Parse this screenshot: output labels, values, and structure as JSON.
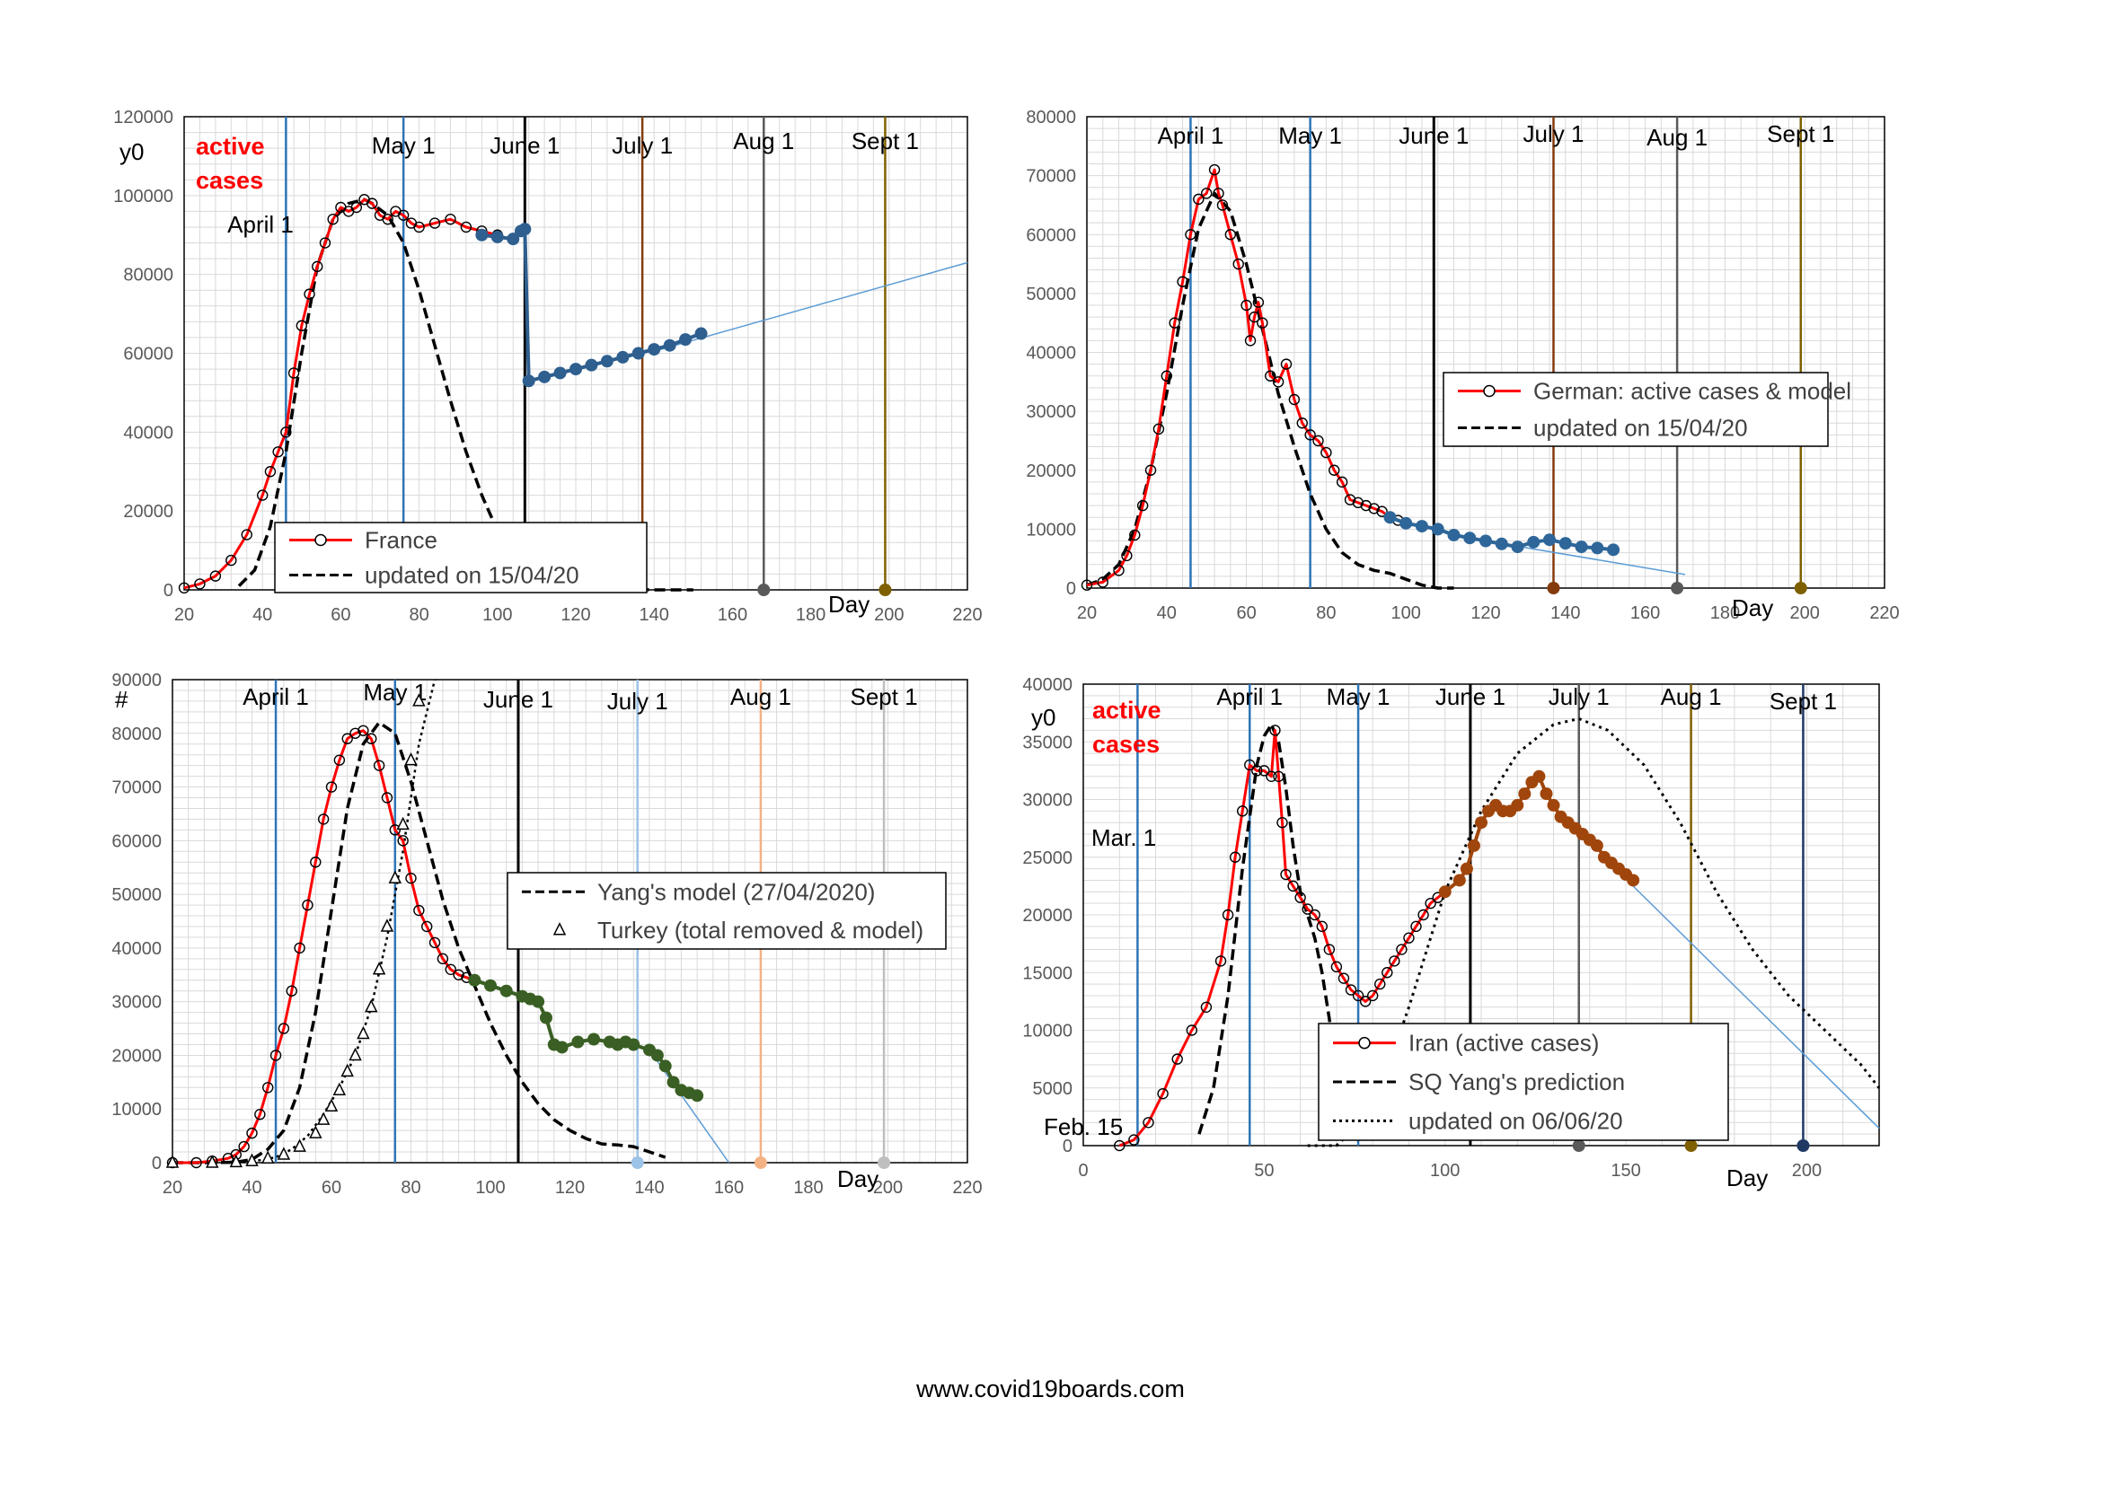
{
  "footer": "www.covid19boards.com",
  "colors": {
    "observed_red": "#ff0000",
    "france_blue": "#2e5f8f",
    "germany_blue": "#2e6699",
    "turkey_green": "#3a5f24",
    "iran_brown": "#a0460c",
    "trend_blue": "#5b9bd5",
    "gridline": "#d9d9d9"
  },
  "chart_data": [
    {
      "id": "france",
      "type": "line",
      "ylabel": "y0",
      "red_label": [
        "active",
        "cases"
      ],
      "xlabel": "Day",
      "xlim": [
        20,
        220
      ],
      "ylim": [
        0,
        120000
      ],
      "xticks": [
        20,
        40,
        60,
        80,
        100,
        120,
        140,
        160,
        180,
        200,
        220
      ],
      "yticks": [
        0,
        20000,
        40000,
        60000,
        80000,
        100000,
        120000
      ],
      "markers": [
        {
          "label": "April 1",
          "x": 46,
          "color": "#2e75b6",
          "dot": false
        },
        {
          "label": "May 1",
          "x": 76,
          "color": "#2e75b6",
          "dot": false
        },
        {
          "label": "June 1",
          "x": 107,
          "color": "#000000",
          "dot": false
        },
        {
          "label": "July 1",
          "x": 137,
          "color": "#843c0c",
          "dot": false
        },
        {
          "label": "Aug 1",
          "x": 168,
          "color": "#595959",
          "dot": true
        },
        {
          "label": "Sept 1",
          "x": 199,
          "color": "#7f6000",
          "dot": true
        }
      ],
      "legend": [
        "France",
        "updated on 15/04/20"
      ],
      "observed": {
        "x": [
          20,
          24,
          28,
          32,
          36,
          40,
          42,
          44,
          46,
          48,
          50,
          52,
          54,
          56,
          58,
          60,
          62,
          64,
          66,
          68,
          70,
          72,
          74,
          76,
          78,
          80,
          84,
          88,
          92,
          96,
          100
        ],
        "y": [
          500,
          1500,
          3500,
          7500,
          14000,
          24000,
          30000,
          35000,
          40000,
          55000,
          67000,
          75000,
          82000,
          88000,
          94000,
          97000,
          96000,
          97000,
          99000,
          98000,
          95000,
          94000,
          96000,
          95000,
          93000,
          92000,
          93000,
          94000,
          92000,
          91000,
          90000
        ]
      },
      "model": {
        "x": [
          34,
          38,
          42,
          46,
          50,
          54,
          58,
          62,
          66,
          68,
          72,
          76,
          80,
          84,
          88,
          92,
          96,
          100,
          104,
          108,
          112,
          140,
          150
        ],
        "y": [
          1000,
          5000,
          16000,
          35000,
          60000,
          82000,
          94000,
          98000,
          99000,
          98000,
          95000,
          88000,
          76000,
          62000,
          48000,
          35000,
          24000,
          15000,
          8000,
          3000,
          500,
          0,
          0
        ]
      },
      "highlight": {
        "x": [
          96,
          100,
          104,
          106,
          107,
          108,
          112,
          116,
          120,
          124,
          128,
          132,
          136,
          140,
          144,
          148,
          152
        ],
        "y": [
          90000,
          89500,
          89000,
          91000,
          91500,
          53000,
          54000,
          55000,
          56000,
          57000,
          58000,
          59000,
          60000,
          61000,
          62000,
          63500,
          65000
        ]
      },
      "trend": {
        "x": [
          140,
          220
        ],
        "y": [
          60500,
          83000
        ]
      }
    },
    {
      "id": "germany",
      "type": "line",
      "xlabel": "Day",
      "xlim": [
        20,
        220
      ],
      "ylim": [
        0,
        80000
      ],
      "xticks": [
        20,
        40,
        60,
        80,
        100,
        120,
        140,
        160,
        180,
        200,
        220
      ],
      "yticks": [
        0,
        10000,
        20000,
        30000,
        40000,
        50000,
        60000,
        70000,
        80000
      ],
      "markers": [
        {
          "label": "April 1",
          "x": 46,
          "color": "#2e75b6",
          "dot": false
        },
        {
          "label": "May 1",
          "x": 76,
          "color": "#2e75b6",
          "dot": false
        },
        {
          "label": "June 1",
          "x": 107,
          "color": "#000000",
          "dot": false
        },
        {
          "label": "July 1",
          "x": 137,
          "color": "#843c0c",
          "dot": true
        },
        {
          "label": "Aug 1",
          "x": 168,
          "color": "#595959",
          "dot": true
        },
        {
          "label": "Sept 1",
          "x": 199,
          "color": "#7f6000",
          "dot": true
        }
      ],
      "legend": [
        "German: active cases & model",
        "updated on 15/04/20"
      ],
      "observed": {
        "x": [
          20,
          24,
          28,
          30,
          32,
          34,
          36,
          38,
          40,
          42,
          44,
          46,
          48,
          50,
          52,
          53,
          54,
          56,
          58,
          60,
          61,
          62,
          63,
          64,
          66,
          68,
          70,
          72,
          74,
          76,
          78,
          80,
          82,
          84,
          86,
          88,
          90,
          92,
          94,
          96,
          98,
          100
        ],
        "y": [
          500,
          1000,
          3000,
          5500,
          9000,
          14000,
          20000,
          27000,
          36000,
          45000,
          52000,
          60000,
          66000,
          67000,
          71000,
          67000,
          65000,
          60000,
          55000,
          48000,
          42000,
          46000,
          48500,
          45000,
          36000,
          35000,
          38000,
          32000,
          28000,
          26000,
          25000,
          23000,
          20000,
          18000,
          15000,
          14500,
          14000,
          13500,
          13000,
          12000,
          11500,
          11000
        ]
      },
      "model": {
        "x": [
          20,
          24,
          28,
          32,
          36,
          40,
          44,
          48,
          52,
          56,
          60,
          64,
          68,
          72,
          76,
          80,
          84,
          88,
          92,
          96,
          100,
          104,
          108,
          112
        ],
        "y": [
          500,
          1500,
          4000,
          10000,
          20000,
          33000,
          48000,
          61000,
          67000,
          64000,
          55000,
          44000,
          33000,
          24000,
          16000,
          10000,
          6000,
          4000,
          3000,
          2500,
          1500,
          500,
          0,
          0
        ]
      },
      "highlight": {
        "x": [
          96,
          100,
          104,
          108,
          112,
          116,
          120,
          124,
          128,
          132,
          136,
          140,
          144,
          148,
          152
        ],
        "y": [
          12000,
          11000,
          10500,
          10000,
          9000,
          8500,
          8000,
          7500,
          7000,
          7800,
          8200,
          7600,
          7000,
          6800,
          6500
        ]
      },
      "trend": {
        "x": [
          120,
          170
        ],
        "y": [
          8000,
          2300
        ]
      }
    },
    {
      "id": "turkey",
      "type": "line",
      "ylabel": "#",
      "xlabel": "Day",
      "xlim": [
        20,
        220
      ],
      "ylim": [
        0,
        90000
      ],
      "xticks": [
        20,
        40,
        60,
        80,
        100,
        120,
        140,
        160,
        180,
        200,
        220
      ],
      "yticks": [
        0,
        10000,
        20000,
        30000,
        40000,
        50000,
        60000,
        70000,
        80000,
        90000
      ],
      "markers": [
        {
          "label": "April 1",
          "x": 46,
          "color": "#2e75b6",
          "dot": false
        },
        {
          "label": "May 1",
          "x": 76,
          "color": "#2e75b6",
          "dot": false
        },
        {
          "label": "June 1",
          "x": 107,
          "color": "#000000",
          "dot": false
        },
        {
          "label": "July 1",
          "x": 137,
          "color": "#9dc3e6",
          "dot": true
        },
        {
          "label": "Aug 1",
          "x": 168,
          "color": "#f4b183",
          "dot": true
        },
        {
          "label": "Sept 1",
          "x": 199,
          "color": "#bfbfbf",
          "dot": true
        }
      ],
      "legend": [
        "Yang's model (27/04/2020)",
        "Turkey (total removed & model)"
      ],
      "observed": {
        "x": [
          20,
          26,
          30,
          34,
          36,
          38,
          40,
          42,
          44,
          46,
          48,
          50,
          52,
          54,
          56,
          58,
          60,
          62,
          64,
          66,
          68,
          70,
          72,
          74,
          76,
          78,
          80,
          82,
          84,
          86,
          88,
          90,
          92,
          94,
          96
        ],
        "y": [
          0,
          0,
          300,
          800,
          1500,
          3000,
          5500,
          9000,
          14000,
          20000,
          25000,
          32000,
          40000,
          48000,
          56000,
          64000,
          70000,
          75000,
          79000,
          80000,
          80500,
          79000,
          74000,
          68000,
          62000,
          60000,
          53000,
          47000,
          44000,
          41000,
          38000,
          36000,
          35000,
          34500,
          34000
        ]
      },
      "model": {
        "x": [
          20,
          30,
          36,
          40,
          44,
          48,
          52,
          56,
          60,
          64,
          68,
          72,
          76,
          80,
          84,
          88,
          92,
          96,
          100,
          104,
          108,
          112,
          116,
          120,
          124,
          128,
          132,
          136,
          140,
          144
        ],
        "y": [
          0,
          0,
          100,
          600,
          2500,
          6000,
          14000,
          28000,
          47000,
          66000,
          78000,
          82000,
          80000,
          71000,
          60000,
          49000,
          40000,
          33000,
          26000,
          20000,
          15000,
          11000,
          8000,
          6000,
          4500,
          3500,
          3300,
          3000,
          2000,
          1000
        ]
      },
      "triangles": {
        "x": [
          20,
          30,
          36,
          40,
          44,
          48,
          52,
          56,
          58,
          60,
          62,
          64,
          66,
          68,
          70,
          72,
          74,
          76,
          78,
          80,
          82
        ],
        "y": [
          0,
          0,
          100,
          300,
          800,
          1500,
          3000,
          5500,
          8000,
          10500,
          13500,
          17000,
          20000,
          24000,
          29000,
          36000,
          44000,
          53000,
          63000,
          75000,
          86000
        ]
      },
      "triangle_model": {
        "x": [
          40,
          46,
          50,
          54,
          58,
          62,
          66,
          70,
          74,
          78,
          80,
          82,
          84,
          86
        ],
        "y": [
          200,
          1000,
          2500,
          5000,
          9000,
          14000,
          20000,
          29000,
          42000,
          58000,
          68000,
          78000,
          84000,
          90000
        ]
      },
      "highlight": {
        "x": [
          96,
          100,
          104,
          108,
          110,
          112,
          114,
          116,
          118,
          122,
          126,
          130,
          132,
          134,
          136,
          140,
          142,
          144,
          146,
          148,
          150,
          152
        ],
        "y": [
          34000,
          33000,
          32000,
          31000,
          30500,
          30000,
          27000,
          22000,
          21500,
          22500,
          23000,
          22500,
          22000,
          22500,
          22000,
          21000,
          20000,
          18000,
          15000,
          13500,
          13000,
          12500
        ]
      },
      "trend": {
        "x": [
          140,
          160
        ],
        "y": [
          21000,
          0
        ]
      }
    },
    {
      "id": "iran",
      "type": "line",
      "ylabel": "y0",
      "red_label": [
        "active",
        "cases"
      ],
      "xlabel": "Day",
      "xlim": [
        0,
        220
      ],
      "ylim": [
        0,
        40000
      ],
      "xticks": [
        0,
        50,
        100,
        150,
        200
      ],
      "yticks": [
        0,
        5000,
        10000,
        15000,
        20000,
        25000,
        30000,
        35000,
        40000
      ],
      "markers": [
        {
          "label": "Feb. 15",
          "x": 15,
          "color": "#2e75b6",
          "dot": false
        },
        {
          "label": "Mar. 1",
          "x": 15,
          "color": "#2e75b6",
          "dot": false
        },
        {
          "label": "April 1",
          "x": 46,
          "color": "#2e75b6",
          "dot": false
        },
        {
          "label": "May 1",
          "x": 76,
          "color": "#2e75b6",
          "dot": false
        },
        {
          "label": "June 1",
          "x": 107,
          "color": "#000000",
          "dot": false
        },
        {
          "label": "July 1",
          "x": 137,
          "color": "#595959",
          "dot": true
        },
        {
          "label": "Aug 1",
          "x": 168,
          "color": "#7f6000",
          "dot": true
        },
        {
          "label": "Sept 1",
          "x": 199,
          "color": "#1f3864",
          "dot": true
        }
      ],
      "legend": [
        "Iran (active cases)",
        "SQ Yang's prediction",
        "updated on 06/06/20"
      ],
      "observed": {
        "x": [
          10,
          14,
          18,
          22,
          26,
          30,
          34,
          38,
          40,
          42,
          44,
          46,
          48,
          50,
          52,
          53,
          54,
          55,
          56,
          58,
          60,
          62,
          64,
          66,
          68,
          70,
          72,
          74,
          76,
          78,
          80,
          82,
          84,
          86,
          88,
          90,
          92,
          94,
          96,
          98,
          100
        ],
        "y": [
          0,
          500,
          2000,
          4500,
          7500,
          10000,
          12000,
          16000,
          20000,
          25000,
          29000,
          33000,
          32500,
          32500,
          32000,
          36000,
          32000,
          28000,
          23500,
          22500,
          21500,
          20500,
          20000,
          19000,
          17000,
          15500,
          14500,
          13500,
          13000,
          12500,
          13000,
          14000,
          15000,
          16000,
          17000,
          18000,
          19000,
          20000,
          21000,
          21500,
          22000
        ]
      },
      "model": {
        "x": [
          32,
          36,
          40,
          44,
          48,
          50,
          52,
          54,
          56,
          58,
          60,
          62,
          64,
          66,
          68,
          70,
          72
        ],
        "y": [
          1000,
          5000,
          13000,
          24000,
          33000,
          35500,
          36500,
          35000,
          31000,
          26000,
          22000,
          20000,
          18000,
          15000,
          11000,
          6000,
          2000
        ]
      },
      "model2": {
        "x": [
          62,
          70,
          80,
          90,
          100,
          110,
          120,
          130,
          137,
          145,
          155,
          165,
          175,
          185,
          195,
          205,
          215,
          220
        ],
        "y": [
          0,
          0,
          3000,
          12000,
          22000,
          29000,
          34000,
          36500,
          37000,
          36000,
          33000,
          28000,
          22000,
          17000,
          13000,
          10000,
          7000,
          5000
        ]
      },
      "highlight": {
        "x": [
          100,
          104,
          106,
          108,
          110,
          112,
          114,
          116,
          118,
          120,
          122,
          124,
          126,
          128,
          130,
          132,
          134,
          136,
          138,
          140,
          142,
          144,
          146,
          148,
          150,
          152
        ],
        "y": [
          22000,
          23000,
          24000,
          26000,
          28000,
          29000,
          29500,
          29000,
          29000,
          29500,
          30500,
          31500,
          32000,
          30500,
          29500,
          28500,
          28000,
          27500,
          27000,
          26500,
          26000,
          25000,
          24500,
          24000,
          23500,
          23000
        ]
      },
      "trend": {
        "x": [
          152,
          220
        ],
        "y": [
          22500,
          1500
        ]
      }
    }
  ]
}
